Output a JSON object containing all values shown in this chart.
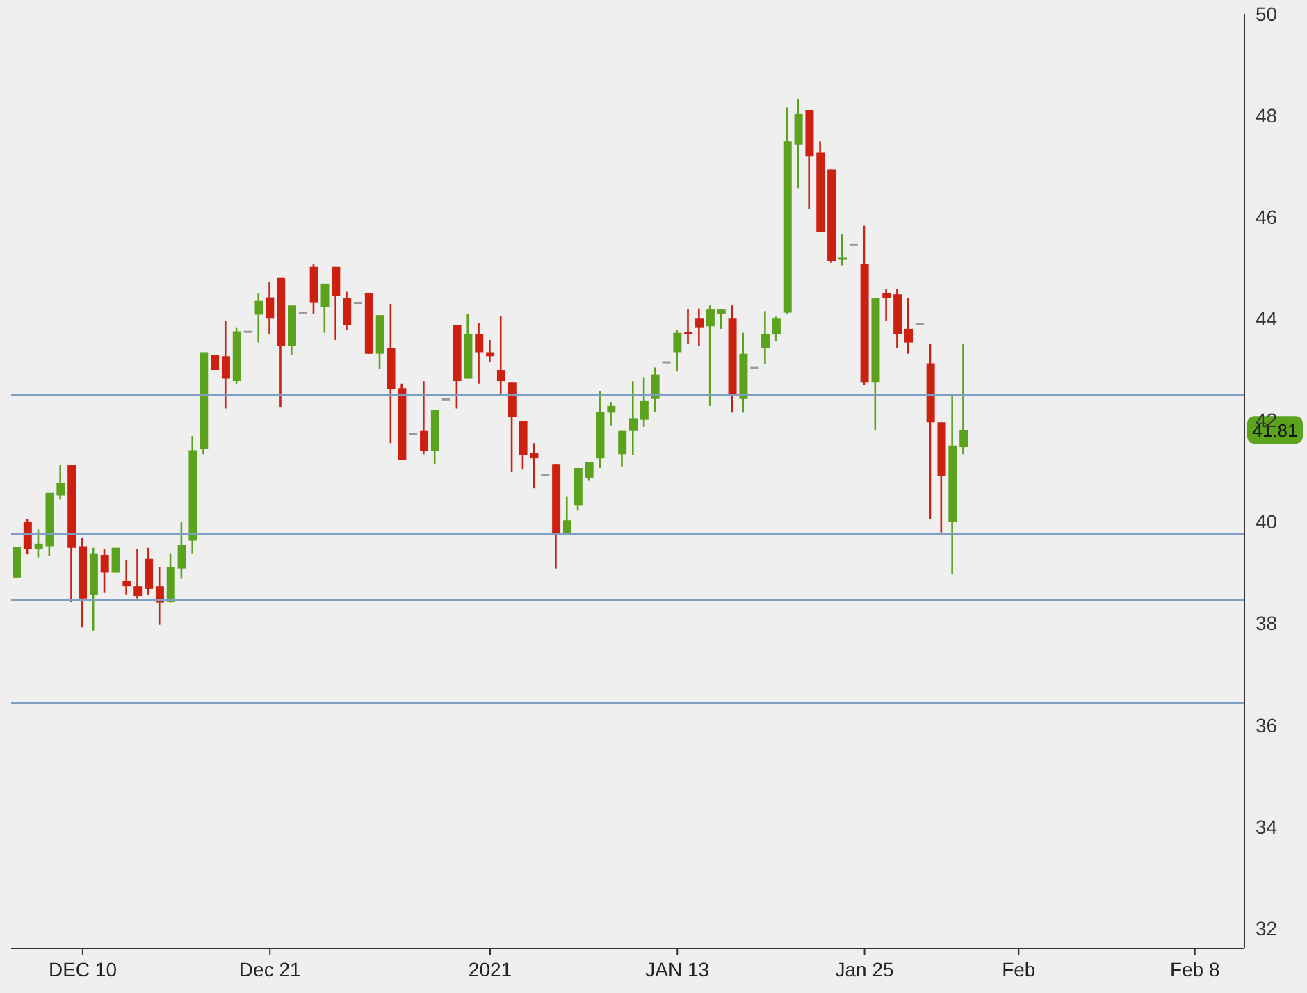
{
  "chart_data": {
    "type": "candlestick",
    "categories": [
      null,
      null,
      null,
      null,
      null,
      null,
      "DEC 10",
      null,
      null,
      null,
      null,
      null,
      null,
      null,
      null,
      null,
      null,
      null,
      null,
      null,
      null,
      null,
      null,
      "Dec 21",
      null,
      null,
      null,
      null,
      null,
      null,
      null,
      null,
      null,
      null,
      null,
      null,
      null,
      null,
      null,
      null,
      null,
      null,
      null,
      "2021",
      null,
      null,
      null,
      null,
      null,
      null,
      null,
      null,
      null,
      null,
      null,
      null,
      null,
      null,
      null,
      null,
      "JAN 13",
      null,
      null,
      null,
      null,
      null,
      null,
      null,
      null,
      null,
      null,
      null,
      null,
      null,
      null,
      null,
      null,
      "Jan 25",
      null,
      null,
      null,
      null,
      null,
      null,
      null,
      null,
      null,
      null,
      null,
      null,
      null,
      "Feb",
      null,
      null,
      null,
      null,
      null,
      null,
      null,
      null,
      null,
      null,
      null,
      null,
      null,
      null,
      null,
      "Feb 8",
      null,
      null,
      null,
      null
    ],
    "ohlc": [
      [
        38.9,
        39.5,
        38.9,
        39.5
      ],
      [
        40.0,
        40.06,
        39.36,
        39.46
      ],
      [
        39.46,
        39.85,
        39.3,
        39.57
      ],
      [
        39.52,
        40.57,
        39.33,
        40.57
      ],
      [
        40.52,
        41.12,
        40.44,
        40.77
      ],
      [
        41.12,
        41.12,
        38.43,
        39.49
      ],
      [
        39.52,
        39.68,
        37.92,
        38.49
      ],
      [
        38.57,
        39.49,
        37.86,
        39.38
      ],
      [
        39.35,
        39.46,
        38.6,
        39.0
      ],
      [
        39.0,
        39.49,
        39.0,
        39.49
      ],
      [
        38.84,
        39.25,
        38.57,
        38.73
      ],
      [
        38.73,
        39.46,
        38.49,
        38.54
      ],
      [
        39.27,
        39.49,
        38.57,
        38.68
      ],
      [
        38.73,
        39.11,
        37.97,
        38.41
      ],
      [
        38.43,
        39.38,
        38.41,
        39.11
      ],
      [
        39.08,
        40.0,
        38.89,
        39.54
      ],
      [
        39.63,
        41.69,
        39.38,
        41.41
      ],
      [
        41.44,
        43.34,
        41.33,
        43.34
      ],
      [
        43.28,
        43.28,
        42.99,
        42.99
      ],
      [
        43.26,
        43.96,
        42.23,
        42.82
      ],
      [
        42.77,
        43.83,
        42.72,
        43.75
      ],
      [
        43.72,
        43.72,
        43.72,
        43.72
      ],
      [
        44.08,
        44.5,
        43.53,
        44.35
      ],
      [
        44.42,
        44.72,
        43.69,
        44.0
      ],
      [
        44.8,
        44.8,
        42.25,
        43.47
      ],
      [
        43.47,
        44.26,
        43.28,
        44.26
      ],
      [
        44.1,
        44.1,
        44.1,
        44.1
      ],
      [
        45.02,
        45.07,
        44.1,
        44.31
      ],
      [
        44.23,
        44.69,
        43.72,
        44.69
      ],
      [
        45.02,
        45.02,
        43.58,
        44.45
      ],
      [
        44.4,
        44.53,
        43.77,
        43.88
      ],
      [
        44.29,
        44.29,
        44.29,
        44.29
      ],
      [
        44.5,
        44.5,
        43.31,
        43.31
      ],
      [
        43.31,
        44.07,
        43.01,
        44.07
      ],
      [
        43.42,
        44.29,
        41.55,
        42.61
      ],
      [
        42.63,
        42.72,
        41.22,
        41.22
      ],
      [
        41.71,
        41.71,
        41.71,
        41.71
      ],
      [
        41.79,
        42.77,
        41.33,
        41.39
      ],
      [
        41.39,
        42.2,
        41.14,
        42.2
      ],
      [
        42.39,
        42.39,
        42.39,
        42.39
      ],
      [
        43.88,
        43.88,
        42.23,
        42.77
      ],
      [
        42.82,
        44.1,
        42.82,
        43.69
      ],
      [
        43.69,
        43.91,
        42.72,
        43.34
      ],
      [
        43.34,
        43.58,
        43.15,
        43.26
      ],
      [
        42.99,
        44.05,
        42.5,
        42.77
      ],
      [
        42.74,
        42.74,
        40.98,
        42.07
      ],
      [
        41.98,
        41.98,
        41.03,
        41.31
      ],
      [
        41.36,
        41.55,
        40.66,
        41.25
      ],
      [
        40.9,
        40.9,
        40.9,
        40.9
      ],
      [
        41.14,
        41.14,
        39.08,
        39.76
      ],
      [
        39.76,
        40.49,
        39.76,
        40.03
      ],
      [
        40.33,
        41.06,
        40.22,
        41.06
      ],
      [
        40.87,
        41.17,
        40.82,
        41.17
      ],
      [
        41.25,
        42.58,
        41.06,
        42.17
      ],
      [
        42.15,
        42.36,
        41.9,
        42.28
      ],
      [
        41.33,
        41.79,
        41.09,
        41.79
      ],
      [
        41.79,
        42.77,
        41.31,
        42.04
      ],
      [
        42.01,
        42.85,
        41.87,
        42.39
      ],
      [
        42.42,
        43.04,
        42.17,
        42.9
      ],
      [
        43.12,
        43.12,
        43.12,
        43.12
      ],
      [
        43.34,
        43.77,
        42.96,
        43.72
      ],
      [
        43.72,
        44.18,
        43.5,
        43.69
      ],
      [
        44.0,
        44.2,
        43.47,
        43.83
      ],
      [
        43.85,
        44.26,
        42.28,
        44.18
      ],
      [
        44.1,
        44.18,
        43.8,
        44.18
      ],
      [
        44.0,
        44.26,
        42.15,
        42.5
      ],
      [
        42.42,
        43.72,
        42.15,
        43.31
      ],
      [
        43.01,
        43.01,
        43.01,
        43.01
      ],
      [
        43.42,
        44.15,
        43.1,
        43.69
      ],
      [
        43.69,
        44.04,
        43.56,
        44.0
      ],
      [
        44.12,
        48.16,
        44.1,
        47.49
      ],
      [
        47.43,
        48.33,
        46.56,
        48.03
      ],
      [
        48.11,
        48.11,
        46.16,
        47.19
      ],
      [
        47.27,
        47.49,
        45.7,
        45.7
      ],
      [
        46.94,
        46.94,
        45.1,
        45.13
      ],
      [
        45.16,
        45.67,
        45.05,
        45.18
      ],
      [
        45.43,
        45.43,
        45.43,
        45.43
      ],
      [
        45.07,
        45.83,
        42.7,
        42.74
      ],
      [
        42.74,
        44.4,
        41.8,
        44.4
      ],
      [
        44.5,
        44.58,
        43.96,
        44.4
      ],
      [
        44.48,
        44.58,
        43.42,
        43.69
      ],
      [
        43.8,
        44.4,
        43.31,
        43.53
      ],
      [
        43.88,
        43.88,
        43.88,
        43.88
      ],
      [
        43.12,
        43.5,
        40.06,
        41.96
      ],
      [
        41.96,
        41.96,
        39.79,
        40.9
      ],
      [
        40.0,
        42.5,
        38.98,
        41.5
      ],
      [
        41.47,
        43.5,
        41.33,
        41.81
      ],
      null,
      null,
      null,
      null,
      null,
      null,
      null,
      null,
      null,
      null,
      null,
      null,
      null,
      null,
      null,
      null,
      null,
      null,
      null,
      null,
      null,
      null,
      null,
      null,
      null
    ],
    "colors": [
      "#5ba31d",
      "#cc2010",
      "#5ba31d",
      "#5ba31d",
      "#5ba31d",
      "#cc2010",
      "#cc2010",
      "#5ba31d",
      "#cc2010",
      "#5ba31d",
      "#cc2010",
      "#cc2010",
      "#cc2010",
      "#cc2010",
      "#5ba31d",
      "#5ba31d",
      "#5ba31d",
      "#5ba31d",
      "#cc2010",
      "#cc2010",
      "#5ba31d",
      "#999999",
      "#5ba31d",
      "#cc2010",
      "#cc2010",
      "#5ba31d",
      "#999999",
      "#cc2010",
      "#5ba31d",
      "#cc2010",
      "#cc2010",
      "#999999",
      "#cc2010",
      "#5ba31d",
      "#cc2010",
      "#cc2010",
      "#999999",
      "#cc2010",
      "#5ba31d",
      "#999999",
      "#cc2010",
      "#5ba31d",
      "#cc2010",
      "#cc2010",
      "#cc2010",
      "#cc2010",
      "#cc2010",
      "#cc2010",
      "#999999",
      "#cc2010",
      "#5ba31d",
      "#5ba31d",
      "#5ba31d",
      "#5ba31d",
      "#5ba31d",
      "#5ba31d",
      "#5ba31d",
      "#5ba31d",
      "#5ba31d",
      "#999999",
      "#5ba31d",
      "#cc2010",
      "#cc2010",
      "#5ba31d",
      "#5ba31d",
      "#cc2010",
      "#5ba31d",
      "#999999",
      "#5ba31d",
      "#5ba31d",
      "#5ba31d",
      "#5ba31d",
      "#cc2010",
      "#cc2010",
      "#cc2010",
      "#5ba31d",
      "#999999",
      "#cc2010",
      "#5ba31d",
      "#cc2010",
      "#cc2010",
      "#cc2010",
      "#999999",
      "#cc2010",
      "#cc2010",
      "#5ba31d",
      "#5ba31d",
      null,
      null,
      null,
      null,
      null,
      null,
      null,
      null,
      null,
      null,
      null,
      null,
      null,
      null,
      null,
      null,
      null,
      null,
      null,
      null,
      null,
      null,
      null,
      null,
      null
    ],
    "ylim": [
      31.6,
      50
    ],
    "yticks": [
      32,
      34,
      36,
      38,
      40,
      42,
      44,
      46,
      48,
      50
    ],
    "ref_lines": [
      {
        "axis": "y",
        "value": 42.5,
        "color": "#7d9fc4"
      },
      {
        "axis": "y",
        "value": 39.76,
        "color": "#7d9fc4"
      },
      {
        "axis": "y",
        "value": 38.46,
        "color": "#7d9fc4"
      },
      {
        "axis": "y",
        "value": 36.43,
        "color": "#7d9fc4"
      }
    ],
    "annotations": [
      {
        "text": "41.81",
        "y": 41.81
      }
    ],
    "grid": false,
    "legend": false
  }
}
